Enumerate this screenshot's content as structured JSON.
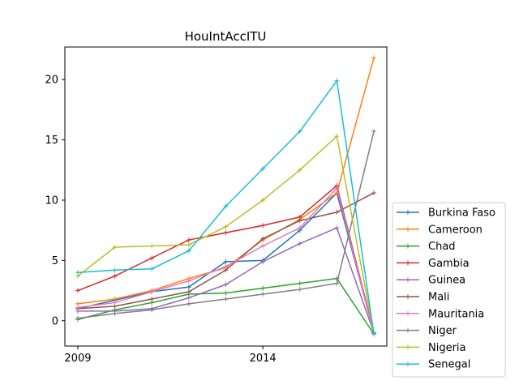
{
  "chart_data": {
    "type": "line",
    "title": "HouIntAccITU",
    "xlabel": "",
    "ylabel": "",
    "x": [
      2009,
      2010,
      2011,
      2012,
      2013,
      2014,
      2015,
      2016,
      2017
    ],
    "xlim": [
      2008.65,
      2017.35
    ],
    "ylim": [
      -2.1,
      22.7
    ],
    "xticks": [
      2009,
      2014
    ],
    "xtick_labels": [
      "2009",
      "2014"
    ],
    "yticks": [
      0,
      5,
      10,
      15,
      20
    ],
    "ytick_labels": [
      "0",
      "5",
      "10",
      "15",
      "20"
    ],
    "grid": false,
    "legend_position": "outside right, bottom",
    "series": [
      {
        "name": "Burkina Faso",
        "color": "#1f77b4",
        "values": [
          1.0,
          1.7,
          2.4,
          2.8,
          4.9,
          5.0,
          7.5,
          10.6,
          -1.0
        ]
      },
      {
        "name": "Cameroon",
        "color": "#ff7f0e",
        "values": [
          1.4,
          1.8,
          2.5,
          3.5,
          4.4,
          6.7,
          8.4,
          10.6,
          21.8
        ]
      },
      {
        "name": "Chad",
        "color": "#2ca02c",
        "values": [
          0.1,
          0.9,
          1.5,
          2.2,
          2.3,
          2.7,
          3.1,
          3.5,
          -1.1
        ]
      },
      {
        "name": "Gambia",
        "color": "#d62728",
        "values": [
          2.5,
          3.7,
          5.2,
          6.7,
          7.3,
          7.9,
          8.6,
          11.2,
          -1.0
        ]
      },
      {
        "name": "Guinea",
        "color": "#9467bd",
        "values": [
          0.8,
          0.8,
          1.0,
          1.9,
          3.0,
          4.9,
          6.4,
          7.7,
          -1.0
        ]
      },
      {
        "name": "Mali",
        "color": "#8c564b",
        "values": [
          1.0,
          1.2,
          1.8,
          2.4,
          4.2,
          6.8,
          8.3,
          9.0,
          10.6
        ]
      },
      {
        "name": "Mauritania",
        "color": "#e377c2",
        "values": [
          1.1,
          1.5,
          2.4,
          3.3,
          4.5,
          6.2,
          7.7,
          11.0,
          -1.1
        ]
      },
      {
        "name": "Niger",
        "color": "#7f7f7f",
        "values": [
          0.2,
          0.6,
          0.9,
          1.4,
          1.8,
          2.2,
          2.6,
          3.1,
          15.7
        ]
      },
      {
        "name": "Nigeria",
        "color": "#bcbd22",
        "values": [
          3.7,
          6.1,
          6.2,
          6.3,
          7.8,
          10.0,
          12.5,
          15.3,
          -1.1
        ]
      },
      {
        "name": "Senegal",
        "color": "#17becf",
        "values": [
          4.0,
          4.2,
          4.3,
          5.8,
          9.5,
          12.6,
          15.7,
          19.9,
          -1.1
        ]
      }
    ]
  }
}
